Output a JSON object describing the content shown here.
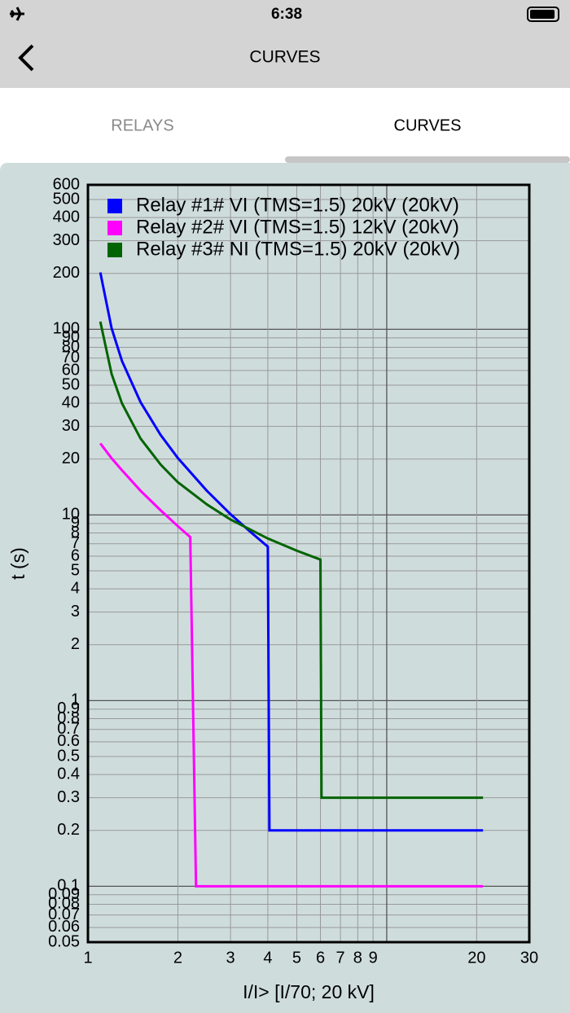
{
  "status_bar": {
    "time": "6:38"
  },
  "nav": {
    "title": "CURVES"
  },
  "tabs": [
    "RELAYS",
    "CURVES"
  ],
  "chart_data": {
    "type": "line",
    "x_label": "I/I> [I/70; 20 kV]",
    "y_label": "t (s)",
    "xscale": "log",
    "yscale": "log",
    "grid": true,
    "legend": "upper-left",
    "xlim": [
      1,
      30
    ],
    "xticks": [
      1,
      2,
      3,
      4,
      5,
      6,
      7,
      8,
      9,
      {
        "value": 10,
        "label": null
      },
      20,
      30
    ],
    "ylim": [
      0.05,
      600
    ],
    "yticks": [
      0.05,
      0.06,
      0.07,
      0.08,
      0.09,
      0.1,
      0.2,
      0.3,
      0.4,
      0.5,
      0.6,
      0.7,
      0.8,
      0.9,
      1,
      2,
      3,
      4,
      5,
      6,
      7,
      8,
      9,
      10,
      20,
      30,
      40,
      50,
      60,
      70,
      80,
      90,
      100,
      200,
      300,
      400,
      500,
      600
    ],
    "series": [
      {
        "name": "Relay #1# VI (TMS=1.5) 20kV (20kV)",
        "color": "#0000ff",
        "x": [
          1.1,
          1.2,
          1.3,
          1.5,
          1.75,
          2,
          2.5,
          3,
          3.5,
          4,
          4.05,
          21
        ],
        "values": [
          202.5,
          101.3,
          67.5,
          40.5,
          27,
          20.25,
          13.5,
          10.1,
          8.1,
          6.75,
          0.2,
          0.2
        ]
      },
      {
        "name": "Relay #2# VI (TMS=1.5) 12kV (20kV)",
        "color": "#ff00ff",
        "x": [
          1.1,
          1.2,
          1.3,
          1.5,
          1.75,
          2,
          2.2,
          2.3,
          21
        ],
        "values": [
          24.3,
          20.2,
          17.4,
          13.5,
          10.6,
          8.7,
          7.6,
          0.1,
          0.1
        ]
      },
      {
        "name": "Relay #3# NI (TMS=1.5) 20kV (20kV)",
        "color": "#006400",
        "x": [
          1.1,
          1.2,
          1.3,
          1.5,
          1.75,
          2,
          2.5,
          3,
          4,
          5,
          6,
          6.05,
          21
        ],
        "values": [
          110,
          57.5,
          39.9,
          25.8,
          18.7,
          15,
          11.4,
          9.45,
          7.47,
          6.42,
          5.75,
          0.3,
          0.3
        ]
      }
    ]
  }
}
